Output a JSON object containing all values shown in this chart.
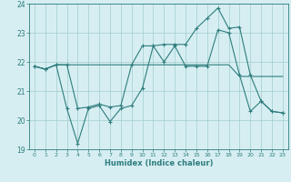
{
  "title": "",
  "xlabel": "Humidex (Indice chaleur)",
  "xlim": [
    -0.5,
    23.5
  ],
  "ylim": [
    19,
    24
  ],
  "yticks": [
    19,
    20,
    21,
    22,
    23,
    24
  ],
  "xticks": [
    0,
    1,
    2,
    3,
    4,
    5,
    6,
    7,
    8,
    9,
    10,
    11,
    12,
    13,
    14,
    15,
    16,
    17,
    18,
    19,
    20,
    21,
    22,
    23
  ],
  "background_color": "#d6eef2",
  "line_color": "#2e7d7d",
  "grid_color": "#a0cece",
  "line1_x": [
    0,
    1,
    2,
    3,
    4,
    5,
    6,
    7,
    8,
    9,
    10,
    11,
    12,
    13,
    14,
    15,
    16,
    17,
    18,
    19,
    20,
    21,
    22,
    23
  ],
  "line1_y": [
    21.85,
    21.75,
    21.9,
    20.4,
    19.2,
    20.4,
    20.5,
    19.95,
    20.4,
    20.5,
    21.1,
    22.55,
    22.0,
    22.55,
    21.85,
    21.85,
    21.85,
    23.1,
    23.0,
    21.55,
    20.3,
    20.65,
    20.3,
    20.25
  ],
  "line2_x": [
    0,
    1,
    2,
    3,
    4,
    5,
    6,
    7,
    8,
    9,
    10,
    11,
    12,
    13,
    14,
    15,
    16,
    17,
    18,
    19,
    20,
    21,
    22,
    23
  ],
  "line2_y": [
    21.85,
    21.75,
    21.9,
    21.9,
    21.9,
    21.9,
    21.9,
    21.9,
    21.9,
    21.9,
    21.9,
    21.9,
    21.9,
    21.9,
    21.9,
    21.9,
    21.9,
    21.9,
    21.9,
    21.5,
    21.5,
    21.5,
    21.5,
    21.5
  ],
  "line3_x": [
    0,
    1,
    2,
    3,
    4,
    5,
    6,
    7,
    8,
    9,
    10,
    11,
    12,
    13,
    14,
    15,
    16,
    17,
    18,
    19,
    20,
    21,
    22,
    23
  ],
  "line3_y": [
    21.85,
    21.75,
    21.9,
    21.9,
    20.4,
    20.45,
    20.55,
    20.45,
    20.5,
    21.9,
    22.55,
    22.55,
    22.6,
    22.6,
    22.6,
    23.15,
    23.5,
    23.85,
    23.15,
    23.2,
    21.55,
    20.65,
    20.3,
    20.25
  ]
}
